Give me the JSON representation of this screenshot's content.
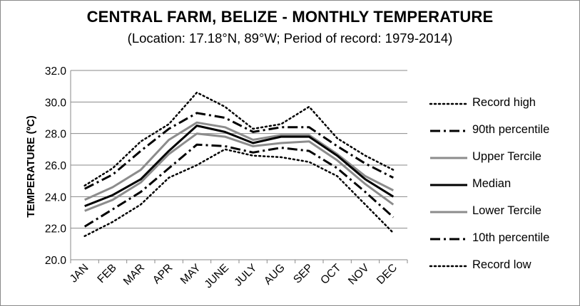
{
  "chart_data": {
    "type": "line",
    "title": "CENTRAL FARM, BELIZE - MONTHLY TEMPERATURE",
    "subtitle": "(Location: 17.18°N, 89°W; Period of record: 1979-2014)",
    "ylabel": "TEMPERATURE (ºC)",
    "xlabel": "",
    "ylim": [
      20,
      32
    ],
    "yticks": [
      "20.0",
      "22.0",
      "24.0",
      "26.0",
      "28.0",
      "30.0",
      "32.0"
    ],
    "grid": true,
    "legend_position": "right",
    "categories": [
      "JAN",
      "FEB",
      "MAR",
      "APR",
      "MAY",
      "JUNE",
      "JULY",
      "AUG",
      "SEP",
      "OCT",
      "NOV",
      "DEC"
    ],
    "series": [
      {
        "name": "Record high",
        "color": "#000000",
        "style": "dotted",
        "values": [
          24.7,
          25.8,
          27.5,
          28.6,
          30.6,
          29.7,
          28.3,
          28.6,
          29.7,
          27.7,
          26.6,
          25.7
        ]
      },
      {
        "name": "90th percentile",
        "color": "#000000",
        "style": "dashdot",
        "values": [
          24.5,
          25.4,
          26.9,
          28.3,
          29.3,
          29.0,
          28.1,
          28.4,
          28.4,
          27.2,
          26.1,
          25.2
        ]
      },
      {
        "name": "Upper Tercile",
        "color": "#8c8c8c",
        "style": "solid",
        "values": [
          23.8,
          24.6,
          25.7,
          27.6,
          28.7,
          28.4,
          27.6,
          27.9,
          27.9,
          26.7,
          25.3,
          24.4
        ]
      },
      {
        "name": "Median",
        "color": "#000000",
        "style": "solid",
        "values": [
          23.4,
          24.1,
          25.1,
          26.9,
          28.5,
          28.1,
          27.4,
          27.8,
          27.8,
          26.6,
          25.1,
          24.0
        ]
      },
      {
        "name": "Lower Tercile",
        "color": "#8c8c8c",
        "style": "solid",
        "values": [
          23.1,
          23.8,
          24.9,
          26.7,
          28.0,
          27.8,
          27.2,
          27.4,
          27.5,
          26.3,
          24.8,
          23.5
        ]
      },
      {
        "name": "10th percentile",
        "color": "#000000",
        "style": "dashdot",
        "values": [
          22.1,
          23.2,
          24.3,
          25.8,
          27.3,
          27.2,
          26.8,
          27.1,
          26.9,
          25.8,
          24.3,
          22.7
        ]
      },
      {
        "name": "Record low",
        "color": "#000000",
        "style": "dotted",
        "values": [
          21.5,
          22.4,
          23.5,
          25.2,
          26.0,
          27.0,
          26.6,
          26.5,
          26.2,
          25.3,
          23.5,
          21.7
        ]
      }
    ]
  }
}
